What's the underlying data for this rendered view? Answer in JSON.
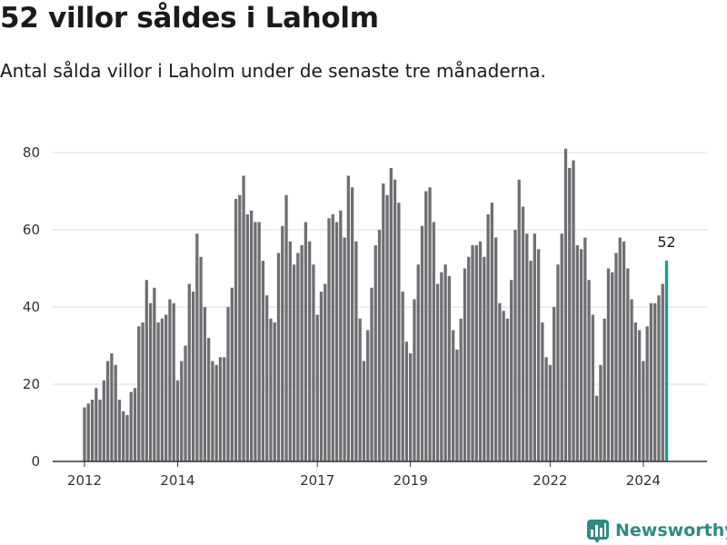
{
  "header": {
    "title": "52 villor såldes i Laholm",
    "subtitle": "Antal sålda villor i Laholm under de senaste tre månaderna."
  },
  "brand": {
    "name": "Newsworthy",
    "icon": "bar-chart-logo-icon",
    "color": "#2e8b84"
  },
  "colors": {
    "bar": "#6e6e73",
    "highlight": "#1a9a93",
    "grid": "#dddddd",
    "axis": "#333333"
  },
  "chart_data": {
    "type": "bar",
    "title": "52 villor såldes i Laholm",
    "subtitle": "Antal sålda villor i Laholm under de senaste tre månaderna.",
    "start": "2012-01",
    "frequency": "monthly",
    "ylim": [
      0,
      80
    ],
    "yticks": [
      0,
      20,
      40,
      60,
      80
    ],
    "xticks": [
      {
        "label": "2012",
        "date": "2012-01"
      },
      {
        "label": "2014",
        "date": "2014-01"
      },
      {
        "label": "2017",
        "date": "2017-01"
      },
      {
        "label": "2019",
        "date": "2019-01"
      },
      {
        "label": "2022",
        "date": "2022-01"
      },
      {
        "label": "2024",
        "date": "2024-01"
      }
    ],
    "grid": true,
    "highlight_label": "52",
    "values": [
      14,
      15,
      16,
      19,
      16,
      21,
      26,
      28,
      25,
      16,
      13,
      12,
      18,
      19,
      35,
      36,
      47,
      41,
      45,
      36,
      37,
      38,
      42,
      41,
      21,
      26,
      30,
      46,
      44,
      59,
      53,
      40,
      32,
      26,
      25,
      27,
      27,
      40,
      45,
      68,
      69,
      74,
      64,
      65,
      62,
      62,
      52,
      43,
      37,
      36,
      54,
      61,
      69,
      57,
      51,
      54,
      56,
      62,
      57,
      51,
      38,
      44,
      46,
      63,
      64,
      62,
      65,
      58,
      74,
      71,
      57,
      37,
      26,
      34,
      45,
      56,
      60,
      72,
      69,
      76,
      73,
      67,
      44,
      31,
      28,
      42,
      51,
      61,
      70,
      71,
      62,
      46,
      49,
      51,
      48,
      34,
      29,
      37,
      50,
      53,
      56,
      56,
      57,
      53,
      64,
      67,
      58,
      41,
      39,
      37,
      47,
      60,
      73,
      66,
      59,
      52,
      59,
      55,
      36,
      27,
      25,
      40,
      51,
      59,
      81,
      76,
      78,
      56,
      55,
      58,
      47,
      38,
      17,
      25,
      37,
      50,
      49,
      54,
      58,
      57,
      50,
      42,
      36,
      34,
      26,
      35,
      41,
      41,
      43,
      46,
      52
    ]
  }
}
